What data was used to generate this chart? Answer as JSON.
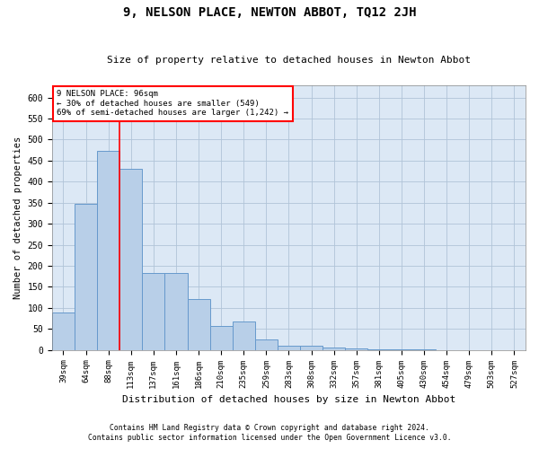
{
  "title": "9, NELSON PLACE, NEWTON ABBOT, TQ12 2JH",
  "subtitle": "Size of property relative to detached houses in Newton Abbot",
  "xlabel": "Distribution of detached houses by size in Newton Abbot",
  "ylabel": "Number of detached properties",
  "categories": [
    "39sqm",
    "64sqm",
    "88sqm",
    "113sqm",
    "137sqm",
    "161sqm",
    "186sqm",
    "210sqm",
    "235sqm",
    "259sqm",
    "283sqm",
    "308sqm",
    "332sqm",
    "357sqm",
    "381sqm",
    "405sqm",
    "430sqm",
    "454sqm",
    "479sqm",
    "503sqm",
    "527sqm"
  ],
  "values": [
    88,
    347,
    473,
    430,
    182,
    182,
    120,
    58,
    68,
    25,
    10,
    10,
    5,
    3,
    2,
    2,
    2,
    0,
    0,
    0,
    0
  ],
  "bar_color": "#b8cfe8",
  "bar_edge_color": "#6699cc",
  "red_line_index": 2,
  "annotation_title": "9 NELSON PLACE: 96sqm",
  "annotation_line1": "← 30% of detached houses are smaller (549)",
  "annotation_line2": "69% of semi-detached houses are larger (1,242) →",
  "ylim": [
    0,
    630
  ],
  "yticks": [
    0,
    50,
    100,
    150,
    200,
    250,
    300,
    350,
    400,
    450,
    500,
    550,
    600
  ],
  "footnote1": "Contains HM Land Registry data © Crown copyright and database right 2024.",
  "footnote2": "Contains public sector information licensed under the Open Government Licence v3.0.",
  "bg_color": "#ffffff",
  "plot_bg_color": "#dce8f5",
  "grid_color": "#b0c4d8"
}
